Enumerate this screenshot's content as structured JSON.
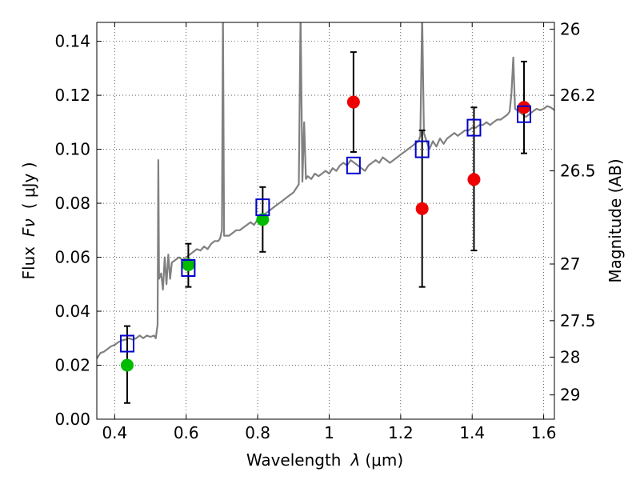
{
  "chart_data": {
    "type": "scatter",
    "x_label_text": "Wavelength",
    "x_label_symbol": "λ",
    "x_label_unit": "(μm)",
    "y_label_text": "Flux",
    "y_label_symbol": "Fν",
    "y_label_unit": "( μJy )",
    "y2_label": "Magnitude (AB)",
    "xlim": [
      0.35,
      1.63
    ],
    "ylim": [
      0.0,
      0.147
    ],
    "x_ticks": [
      0.4,
      0.6,
      0.8,
      1.0,
      1.2,
      1.4,
      1.6
    ],
    "x_tick_labels": [
      "0.4",
      "0.6",
      "0.8",
      "1",
      "1.2",
      "1.4",
      "1.6"
    ],
    "y_ticks": [
      0.0,
      0.02,
      0.04,
      0.06,
      0.08,
      0.1,
      0.12,
      0.14
    ],
    "y_tick_labels": [
      "0.00",
      "0.02",
      "0.04",
      "0.06",
      "0.08",
      "0.10",
      "0.12",
      "0.14"
    ],
    "y2_ticks": [
      {
        "flux": 0.1445,
        "label": "26"
      },
      {
        "flux": 0.12,
        "label": "26.2"
      },
      {
        "flux": 0.092,
        "label": "26.5"
      },
      {
        "flux": 0.0575,
        "label": "27"
      },
      {
        "flux": 0.0365,
        "label": "27.5"
      },
      {
        "flux": 0.023,
        "label": "28"
      },
      {
        "flux": 0.009,
        "label": "29"
      }
    ],
    "grid": true,
    "series": [
      {
        "name": "green photometry",
        "marker": "circle",
        "color": "#00bb00",
        "points": [
          {
            "x": 0.435,
            "y": 0.02
          },
          {
            "x": 0.606,
            "y": 0.0572
          },
          {
            "x": 0.814,
            "y": 0.074
          }
        ]
      },
      {
        "name": "red photometry",
        "marker": "circle",
        "color": "#ee0000",
        "points": [
          {
            "x": 1.068,
            "y": 0.1175
          },
          {
            "x": 1.26,
            "y": 0.078
          },
          {
            "x": 1.405,
            "y": 0.0888
          },
          {
            "x": 1.545,
            "y": 0.1155
          }
        ]
      },
      {
        "name": "error bars",
        "color": "#000000",
        "bars": [
          {
            "x": 0.435,
            "lo": 0.006,
            "hi": 0.0345
          },
          {
            "x": 0.606,
            "lo": 0.049,
            "hi": 0.065
          },
          {
            "x": 0.814,
            "lo": 0.062,
            "hi": 0.086
          },
          {
            "x": 1.068,
            "lo": 0.099,
            "hi": 0.136
          },
          {
            "x": 1.26,
            "lo": 0.049,
            "hi": 0.107
          },
          {
            "x": 1.405,
            "lo": 0.0625,
            "hi": 0.1155
          },
          {
            "x": 1.545,
            "lo": 0.0985,
            "hi": 0.1325
          }
        ]
      },
      {
        "name": "model bandpass fluxes",
        "marker": "open-square",
        "color": "#0000cc",
        "points": [
          {
            "x": 0.435,
            "y": 0.028
          },
          {
            "x": 0.606,
            "y": 0.056
          },
          {
            "x": 0.814,
            "y": 0.0785
          },
          {
            "x": 1.068,
            "y": 0.094
          },
          {
            "x": 1.26,
            "y": 0.1
          },
          {
            "x": 1.405,
            "y": 0.108
          },
          {
            "x": 1.545,
            "y": 0.113
          }
        ]
      },
      {
        "name": "model spectrum",
        "type": "line",
        "color": "#808080",
        "points": [
          [
            0.35,
            0.0225
          ],
          [
            0.36,
            0.0245
          ],
          [
            0.37,
            0.025
          ],
          [
            0.38,
            0.026
          ],
          [
            0.39,
            0.027
          ],
          [
            0.4,
            0.0275
          ],
          [
            0.41,
            0.0285
          ],
          [
            0.42,
            0.0292
          ],
          [
            0.43,
            0.0295
          ],
          [
            0.44,
            0.03
          ],
          [
            0.45,
            0.0295
          ],
          [
            0.46,
            0.03
          ],
          [
            0.47,
            0.031
          ],
          [
            0.48,
            0.03
          ],
          [
            0.49,
            0.031
          ],
          [
            0.5,
            0.0305
          ],
          [
            0.51,
            0.031
          ],
          [
            0.515,
            0.03
          ],
          [
            0.52,
            0.035
          ],
          [
            0.522,
            0.096
          ],
          [
            0.524,
            0.052
          ],
          [
            0.53,
            0.054
          ],
          [
            0.535,
            0.048
          ],
          [
            0.54,
            0.06
          ],
          [
            0.545,
            0.05
          ],
          [
            0.55,
            0.061
          ],
          [
            0.555,
            0.052
          ],
          [
            0.56,
            0.058
          ],
          [
            0.57,
            0.059
          ],
          [
            0.58,
            0.06
          ],
          [
            0.59,
            0.059
          ],
          [
            0.6,
            0.06
          ],
          [
            0.61,
            0.061
          ],
          [
            0.62,
            0.062
          ],
          [
            0.63,
            0.063
          ],
          [
            0.64,
            0.0625
          ],
          [
            0.65,
            0.064
          ],
          [
            0.66,
            0.063
          ],
          [
            0.67,
            0.065
          ],
          [
            0.68,
            0.066
          ],
          [
            0.69,
            0.066
          ],
          [
            0.695,
            0.067
          ],
          [
            0.7,
            0.07
          ],
          [
            0.703,
            0.15
          ],
          [
            0.706,
            0.068
          ],
          [
            0.71,
            0.068
          ],
          [
            0.72,
            0.068
          ],
          [
            0.73,
            0.069
          ],
          [
            0.74,
            0.07
          ],
          [
            0.75,
            0.07
          ],
          [
            0.76,
            0.071
          ],
          [
            0.77,
            0.072
          ],
          [
            0.78,
            0.073
          ],
          [
            0.79,
            0.072
          ],
          [
            0.8,
            0.074
          ],
          [
            0.81,
            0.075
          ],
          [
            0.82,
            0.076
          ],
          [
            0.83,
            0.077
          ],
          [
            0.84,
            0.078
          ],
          [
            0.85,
            0.079
          ],
          [
            0.86,
            0.08
          ],
          [
            0.87,
            0.081
          ],
          [
            0.88,
            0.082
          ],
          [
            0.89,
            0.083
          ],
          [
            0.9,
            0.084
          ],
          [
            0.91,
            0.086
          ],
          [
            0.915,
            0.087
          ],
          [
            0.92,
            0.15
          ],
          [
            0.925,
            0.088
          ],
          [
            0.93,
            0.11
          ],
          [
            0.935,
            0.089
          ],
          [
            0.94,
            0.09
          ],
          [
            0.95,
            0.089
          ],
          [
            0.96,
            0.091
          ],
          [
            0.97,
            0.09
          ],
          [
            0.98,
            0.091
          ],
          [
            0.99,
            0.092
          ],
          [
            1.0,
            0.091
          ],
          [
            1.01,
            0.093
          ],
          [
            1.02,
            0.092
          ],
          [
            1.03,
            0.094
          ],
          [
            1.04,
            0.095
          ],
          [
            1.05,
            0.094
          ],
          [
            1.06,
            0.096
          ],
          [
            1.07,
            0.095
          ],
          [
            1.08,
            0.094
          ],
          [
            1.09,
            0.093
          ],
          [
            1.1,
            0.092
          ],
          [
            1.11,
            0.094
          ],
          [
            1.12,
            0.095
          ],
          [
            1.13,
            0.096
          ],
          [
            1.14,
            0.095
          ],
          [
            1.15,
            0.097
          ],
          [
            1.16,
            0.096
          ],
          [
            1.17,
            0.095
          ],
          [
            1.18,
            0.096
          ],
          [
            1.19,
            0.097
          ],
          [
            1.2,
            0.098
          ],
          [
            1.21,
            0.099
          ],
          [
            1.22,
            0.1
          ],
          [
            1.23,
            0.101
          ],
          [
            1.24,
            0.102
          ],
          [
            1.25,
            0.103
          ],
          [
            1.255,
            0.105
          ],
          [
            1.26,
            0.15
          ],
          [
            1.265,
            0.106
          ],
          [
            1.27,
            0.104
          ],
          [
            1.28,
            0.1
          ],
          [
            1.29,
            0.103
          ],
          [
            1.3,
            0.101
          ],
          [
            1.31,
            0.104
          ],
          [
            1.32,
            0.102
          ],
          [
            1.33,
            0.104
          ],
          [
            1.34,
            0.105
          ],
          [
            1.35,
            0.106
          ],
          [
            1.36,
            0.105
          ],
          [
            1.37,
            0.106
          ],
          [
            1.38,
            0.107
          ],
          [
            1.39,
            0.107
          ],
          [
            1.4,
            0.108
          ],
          [
            1.41,
            0.108
          ],
          [
            1.42,
            0.109
          ],
          [
            1.43,
            0.109
          ],
          [
            1.44,
            0.11
          ],
          [
            1.45,
            0.109
          ],
          [
            1.46,
            0.11
          ],
          [
            1.47,
            0.111
          ],
          [
            1.48,
            0.111
          ],
          [
            1.49,
            0.112
          ],
          [
            1.5,
            0.113
          ],
          [
            1.505,
            0.114
          ],
          [
            1.51,
            0.121
          ],
          [
            1.515,
            0.134
          ],
          [
            1.52,
            0.115
          ],
          [
            1.53,
            0.114
          ],
          [
            1.54,
            0.113
          ],
          [
            1.55,
            0.112
          ],
          [
            1.56,
            0.113
          ],
          [
            1.57,
            0.114
          ],
          [
            1.58,
            0.115
          ],
          [
            1.59,
            0.1145
          ],
          [
            1.6,
            0.115
          ],
          [
            1.61,
            0.116
          ],
          [
            1.62,
            0.1155
          ],
          [
            1.63,
            0.1145
          ]
        ]
      }
    ]
  }
}
